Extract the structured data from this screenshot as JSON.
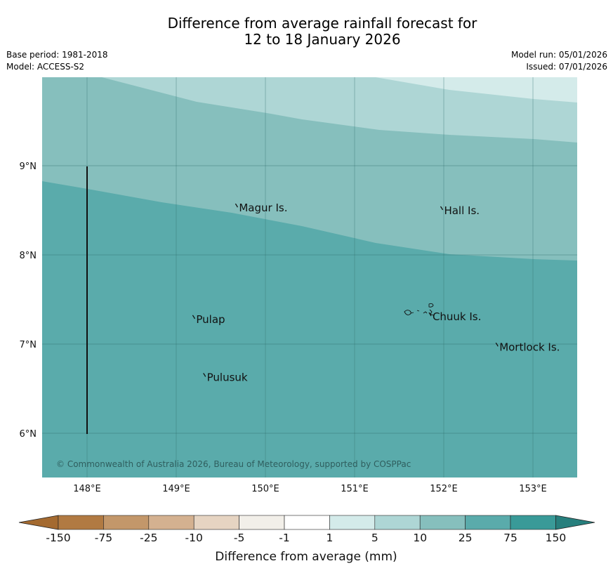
{
  "title": {
    "line1": "Difference from average rainfall forecast for",
    "line2": "12 to 18 January 2026"
  },
  "meta": {
    "base_period": "Base period: 1981-2018",
    "model": "Model: ACCESS-S2",
    "model_run": "Model run: 05/01/2026",
    "issued": "Issued: 07/01/2026"
  },
  "map": {
    "lon_range": [
      147.5,
      153.5
    ],
    "lat_range": [
      5.5,
      9.99
    ],
    "lon_ticks": [
      {
        "value": 148,
        "label": "148°E"
      },
      {
        "value": 149,
        "label": "149°E"
      },
      {
        "value": 150,
        "label": "150°E"
      },
      {
        "value": 151,
        "label": "151°E"
      },
      {
        "value": 152,
        "label": "152°E"
      },
      {
        "value": 153,
        "label": "153°E"
      }
    ],
    "lat_ticks": [
      {
        "value": 9,
        "label": "9°N"
      },
      {
        "value": 8,
        "label": "8°N"
      },
      {
        "value": 7,
        "label": "7°N"
      },
      {
        "value": 6,
        "label": "6°N"
      }
    ],
    "islands": [
      {
        "name": "Magur Is.",
        "lon": 149.68,
        "lat": 8.55
      },
      {
        "name": "Hall Is.",
        "lon": 151.98,
        "lat": 8.52
      },
      {
        "name": "Pulap",
        "lon": 149.2,
        "lat": 7.3
      },
      {
        "name": "Chuuk Is.",
        "lon": 151.85,
        "lat": 7.33
      },
      {
        "name": "Mortlock Is.",
        "lon": 152.6,
        "lat": 6.99
      },
      {
        "name": "Pulusuk",
        "lon": 149.32,
        "lat": 6.65
      }
    ],
    "copyright": "© Commonwealth of Australia 2026, Bureau of Meteorology, supported by COSPPac"
  },
  "colorbar": {
    "title": "Difference from average (mm)",
    "ticks": [
      "-150",
      "-75",
      "-25",
      "-10",
      "-5",
      "-1",
      "1",
      "5",
      "10",
      "25",
      "75",
      "150"
    ],
    "colors": [
      "#a46a30",
      "#b17a42",
      "#c3976a",
      "#d4b190",
      "#e6d4c2",
      "#f2efe9",
      "#ffffff",
      "#d4ebea",
      "#aed6d5",
      "#86bfbd",
      "#5aabab",
      "#399a98",
      "#277f7d"
    ]
  },
  "chart_data": {
    "type": "map",
    "title": "Difference from average rainfall forecast for 12 to 18 January 2026",
    "legend_title": "Difference from average (mm)",
    "categories": [
      "-150 to -75",
      "-75 to -25",
      "-25 to -10",
      "-10 to -5",
      "-5 to -1",
      "-1 to 1",
      "1 to 5",
      "5 to 10",
      "10 to 25",
      "25 to 75",
      "75 to 150"
    ],
    "regions_shown": [
      {
        "category": "1 to 5",
        "area": "far north-east corner"
      },
      {
        "category": "5 to 10",
        "area": "northern band"
      },
      {
        "category": "10 to 25",
        "area": "central band"
      },
      {
        "category": "25 to 75",
        "area": "southern part including Chuuk, Pulap, Pulusuk, Mortlock"
      }
    ]
  }
}
